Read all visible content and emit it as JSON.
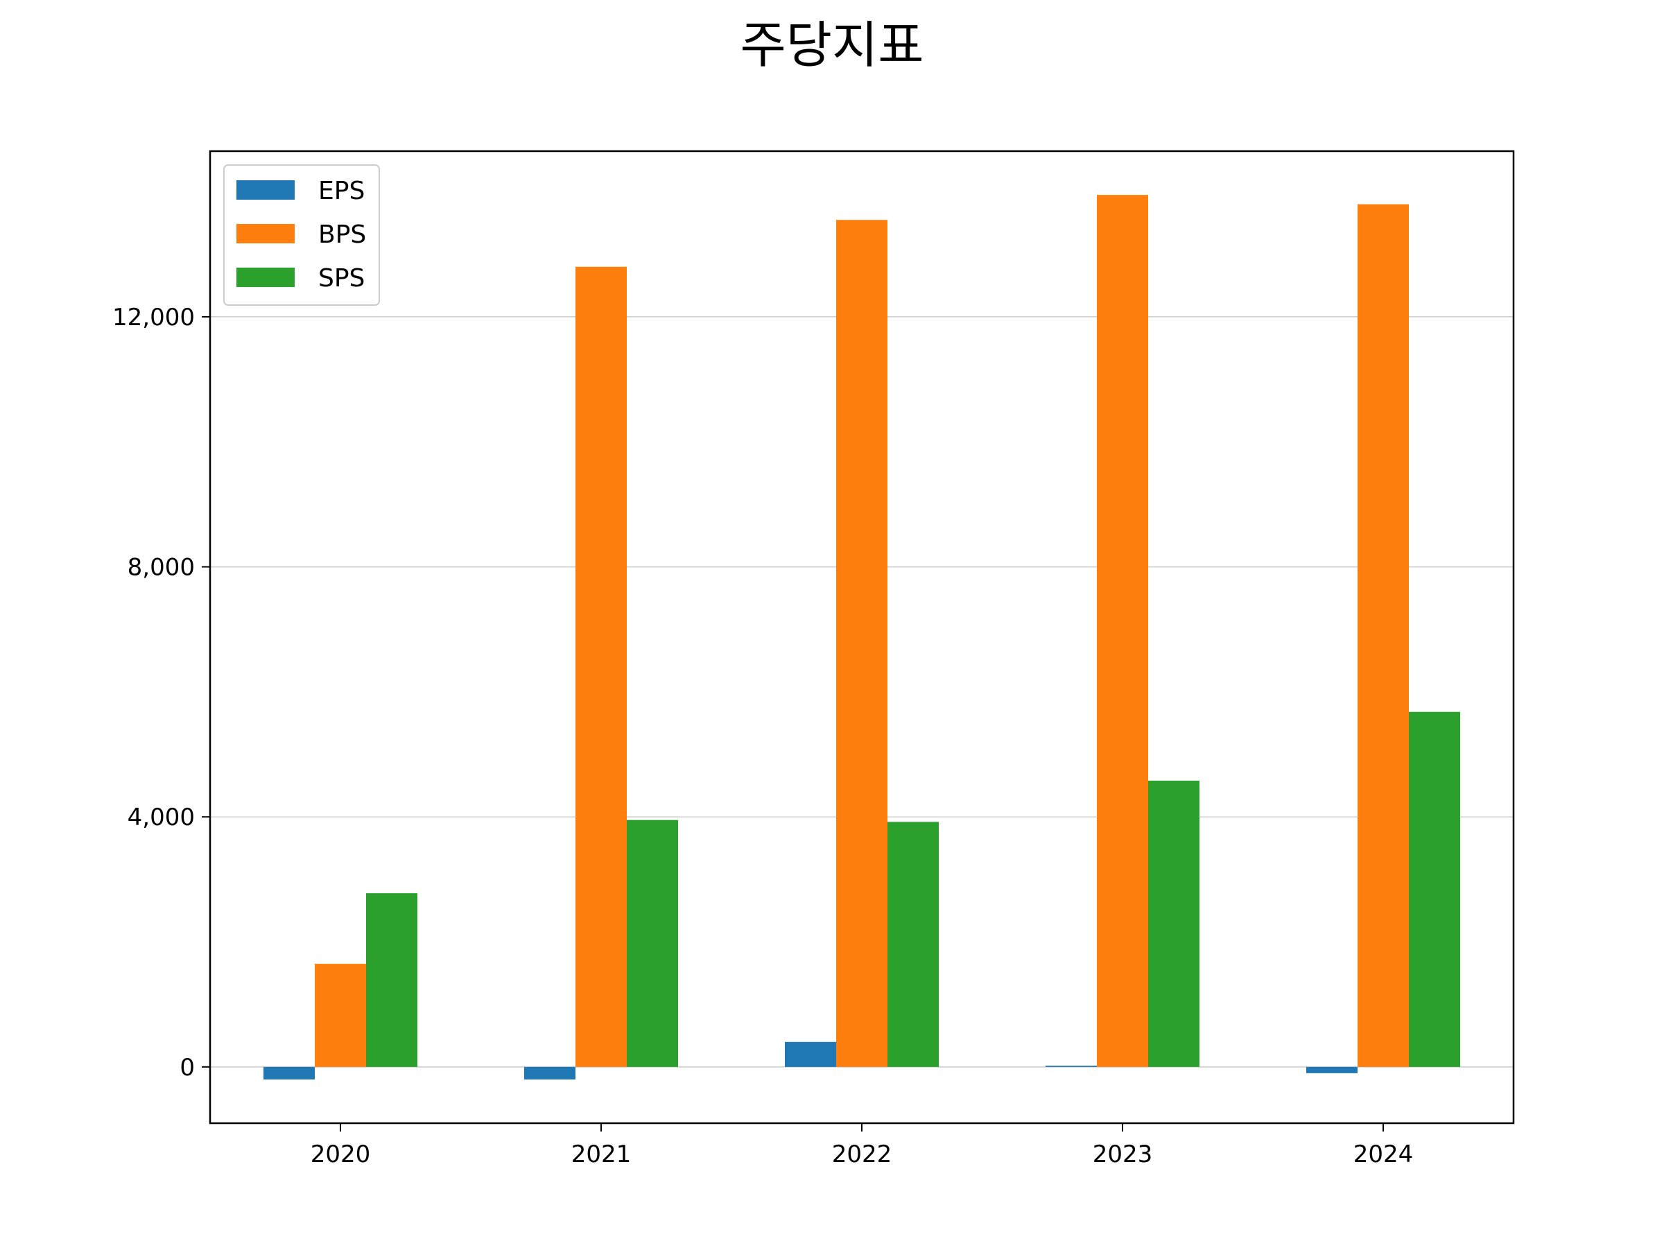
{
  "chart_data": {
    "type": "bar",
    "title": "주당지표",
    "xlabel": "",
    "ylabel": "",
    "categories": [
      "2020",
      "2021",
      "2022",
      "2023",
      "2024"
    ],
    "series": [
      {
        "name": "EPS",
        "color": "#1f77b4",
        "values": [
          -200,
          -200,
          400,
          20,
          -100
        ]
      },
      {
        "name": "BPS",
        "color": "#ff7f0e",
        "values": [
          1650,
          12800,
          13550,
          13950,
          13800
        ]
      },
      {
        "name": "SPS",
        "color": "#2ca02c",
        "values": [
          2780,
          3950,
          3920,
          4580,
          5680
        ]
      }
    ],
    "ylim": [
      -900,
      14650
    ],
    "yticks": [
      0,
      4000,
      8000,
      12000
    ],
    "ytick_labels": [
      "0",
      "4,000",
      "8,000",
      "12,000"
    ],
    "grid": "y",
    "legend_position": "top-left"
  }
}
